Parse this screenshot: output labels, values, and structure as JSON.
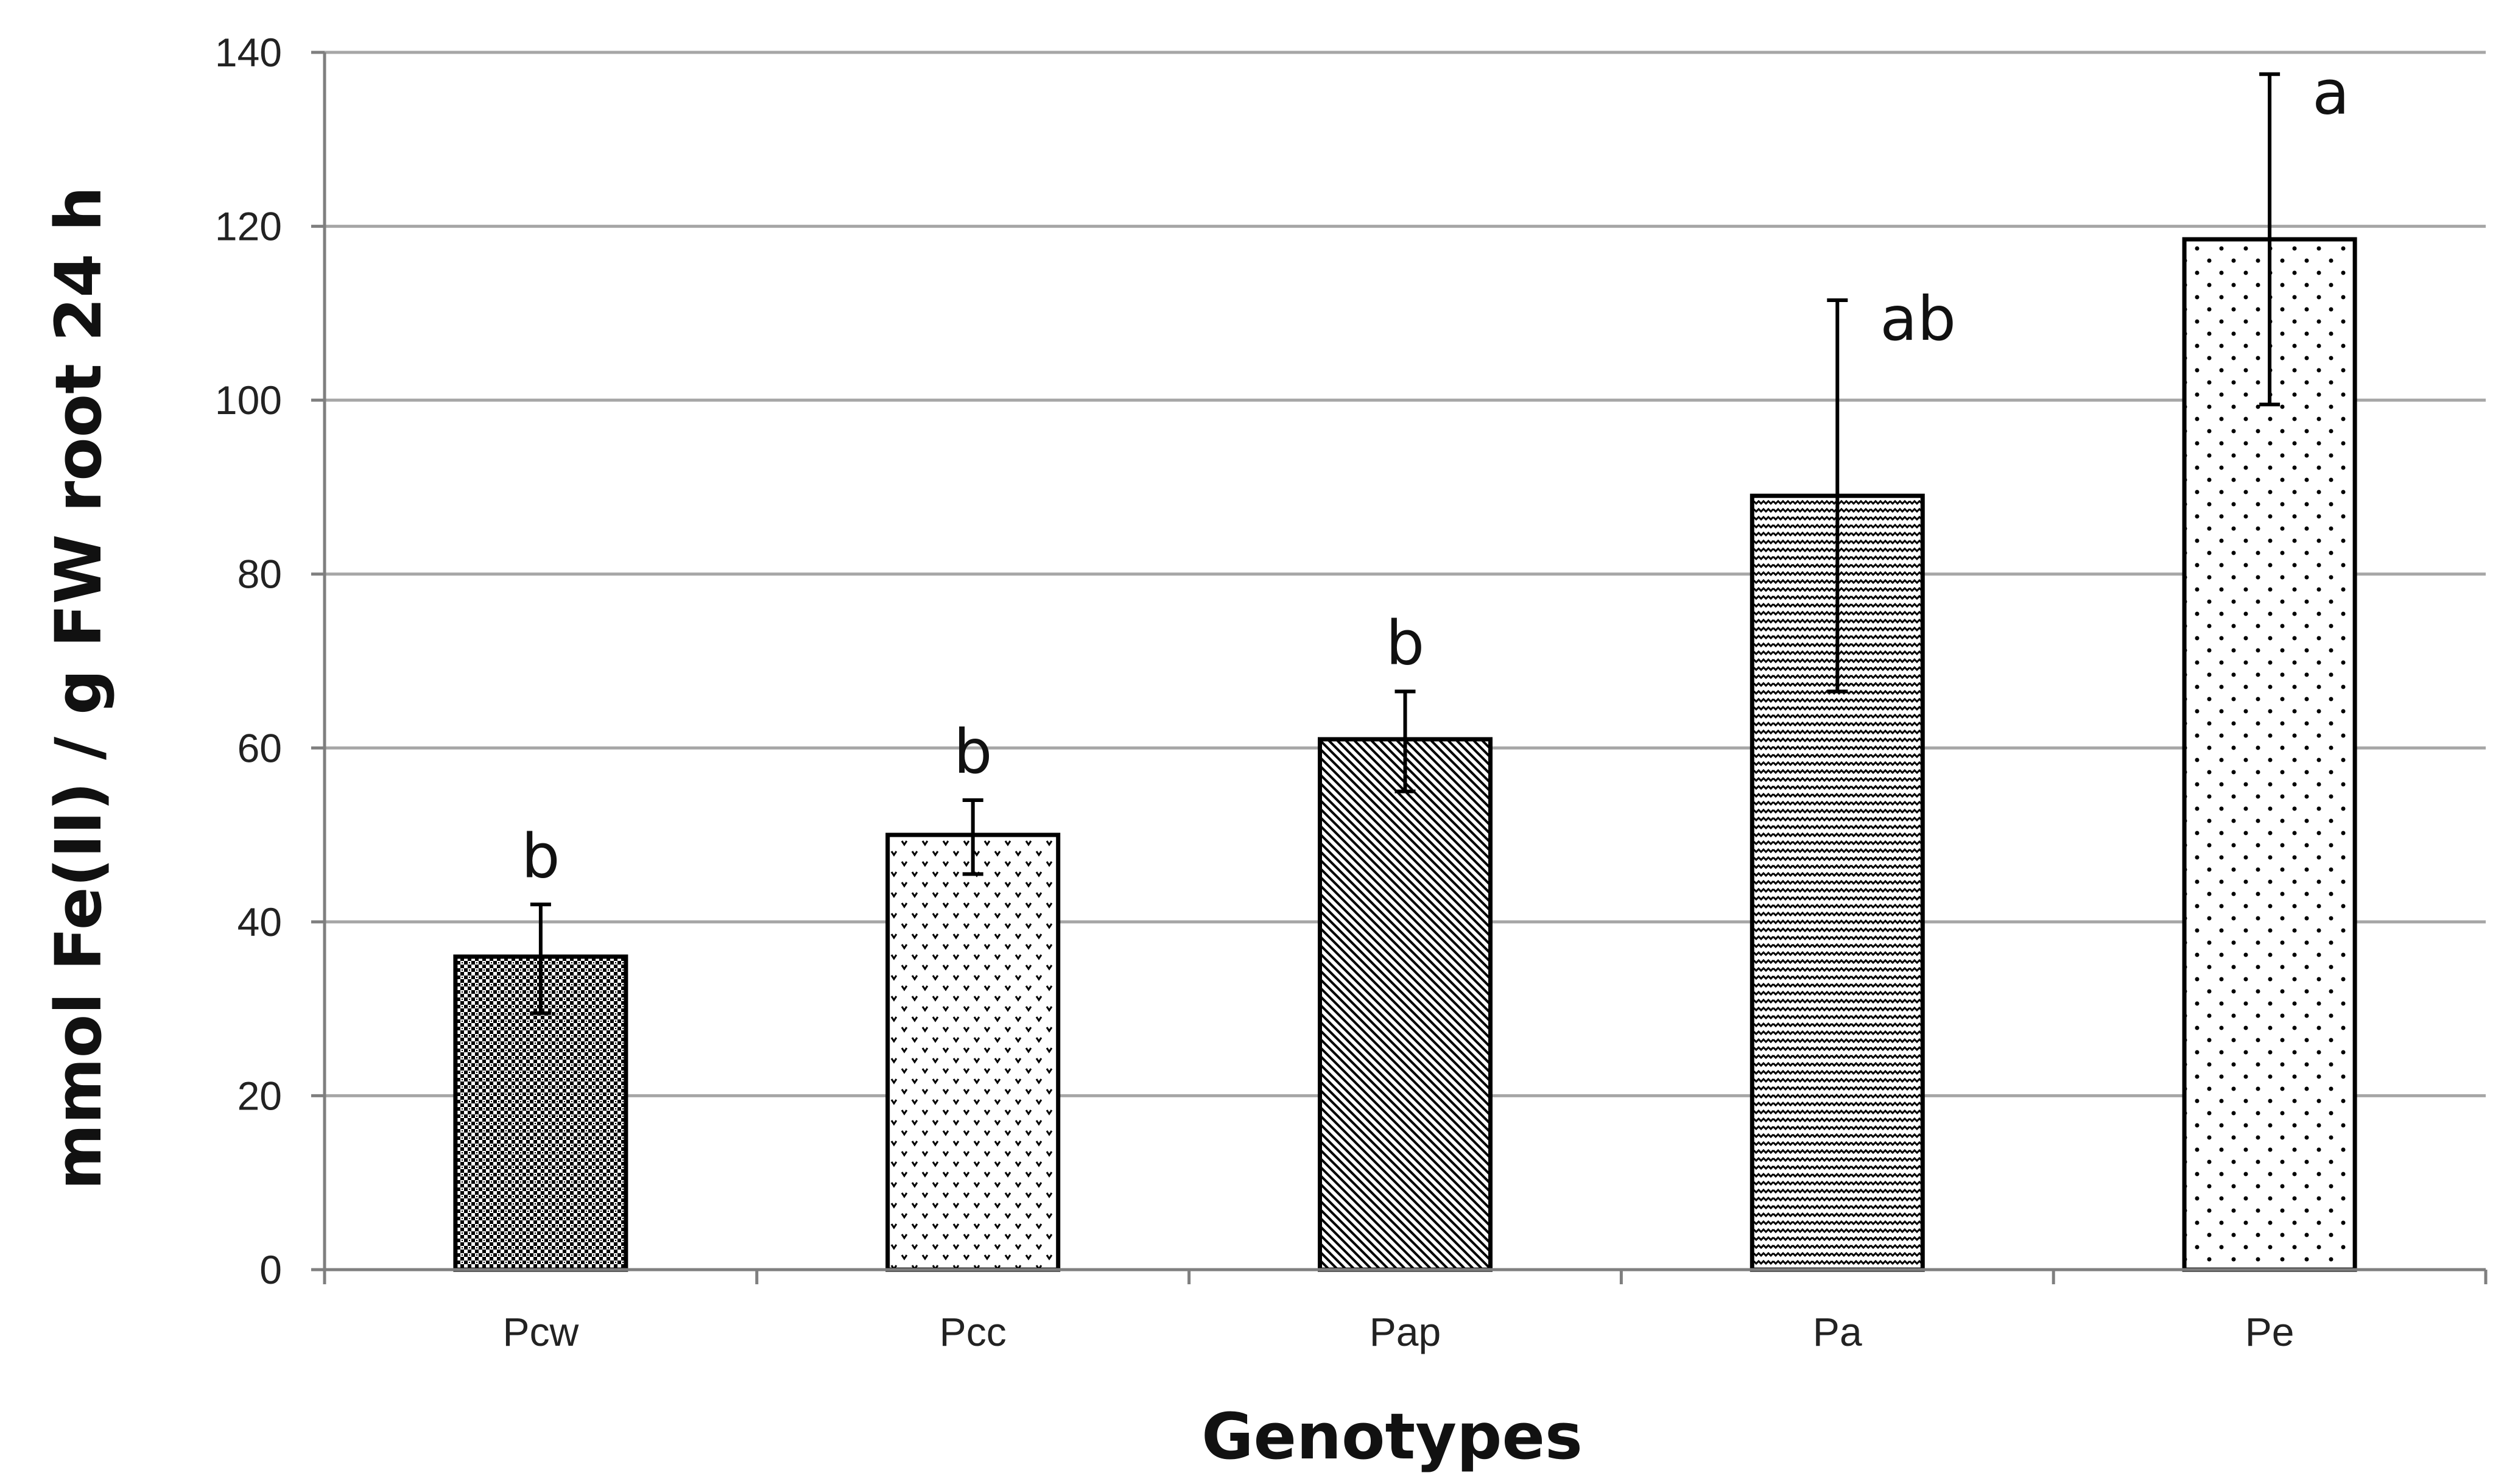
{
  "chart_data": {
    "type": "bar",
    "title": "",
    "xlabel": "Genotypes",
    "ylabel": "mmol Fe(II) / g FW root 24 h",
    "ylim": [
      0,
      140
    ],
    "yticks": [
      0,
      20,
      40,
      60,
      80,
      100,
      120,
      140
    ],
    "ytick_labels": [
      "0",
      "20",
      "40",
      "60",
      "80",
      "100",
      "120",
      "140"
    ],
    "grid": true,
    "legend": "none",
    "categories": [
      "Pcw",
      "Pcc",
      "Pap",
      "Pa",
      "Pe"
    ],
    "values": [
      36,
      50,
      61,
      89,
      118.5
    ],
    "error_low": [
      29.5,
      45.5,
      55,
      66.5,
      99.5
    ],
    "error_high": [
      42,
      54,
      66.5,
      111.5,
      137.5
    ],
    "significance": [
      "b",
      "b",
      "b",
      "ab",
      "a"
    ],
    "patterns": [
      "dense-dots",
      "scattered-vs",
      "diagonal-hatch",
      "horizontal-dashes",
      "sparse-dots"
    ],
    "colors": {
      "bar_stroke": "#000000",
      "grid": "#a6a6a6",
      "axis": "#7f7f7f",
      "pattern_ink": "#000000"
    }
  }
}
